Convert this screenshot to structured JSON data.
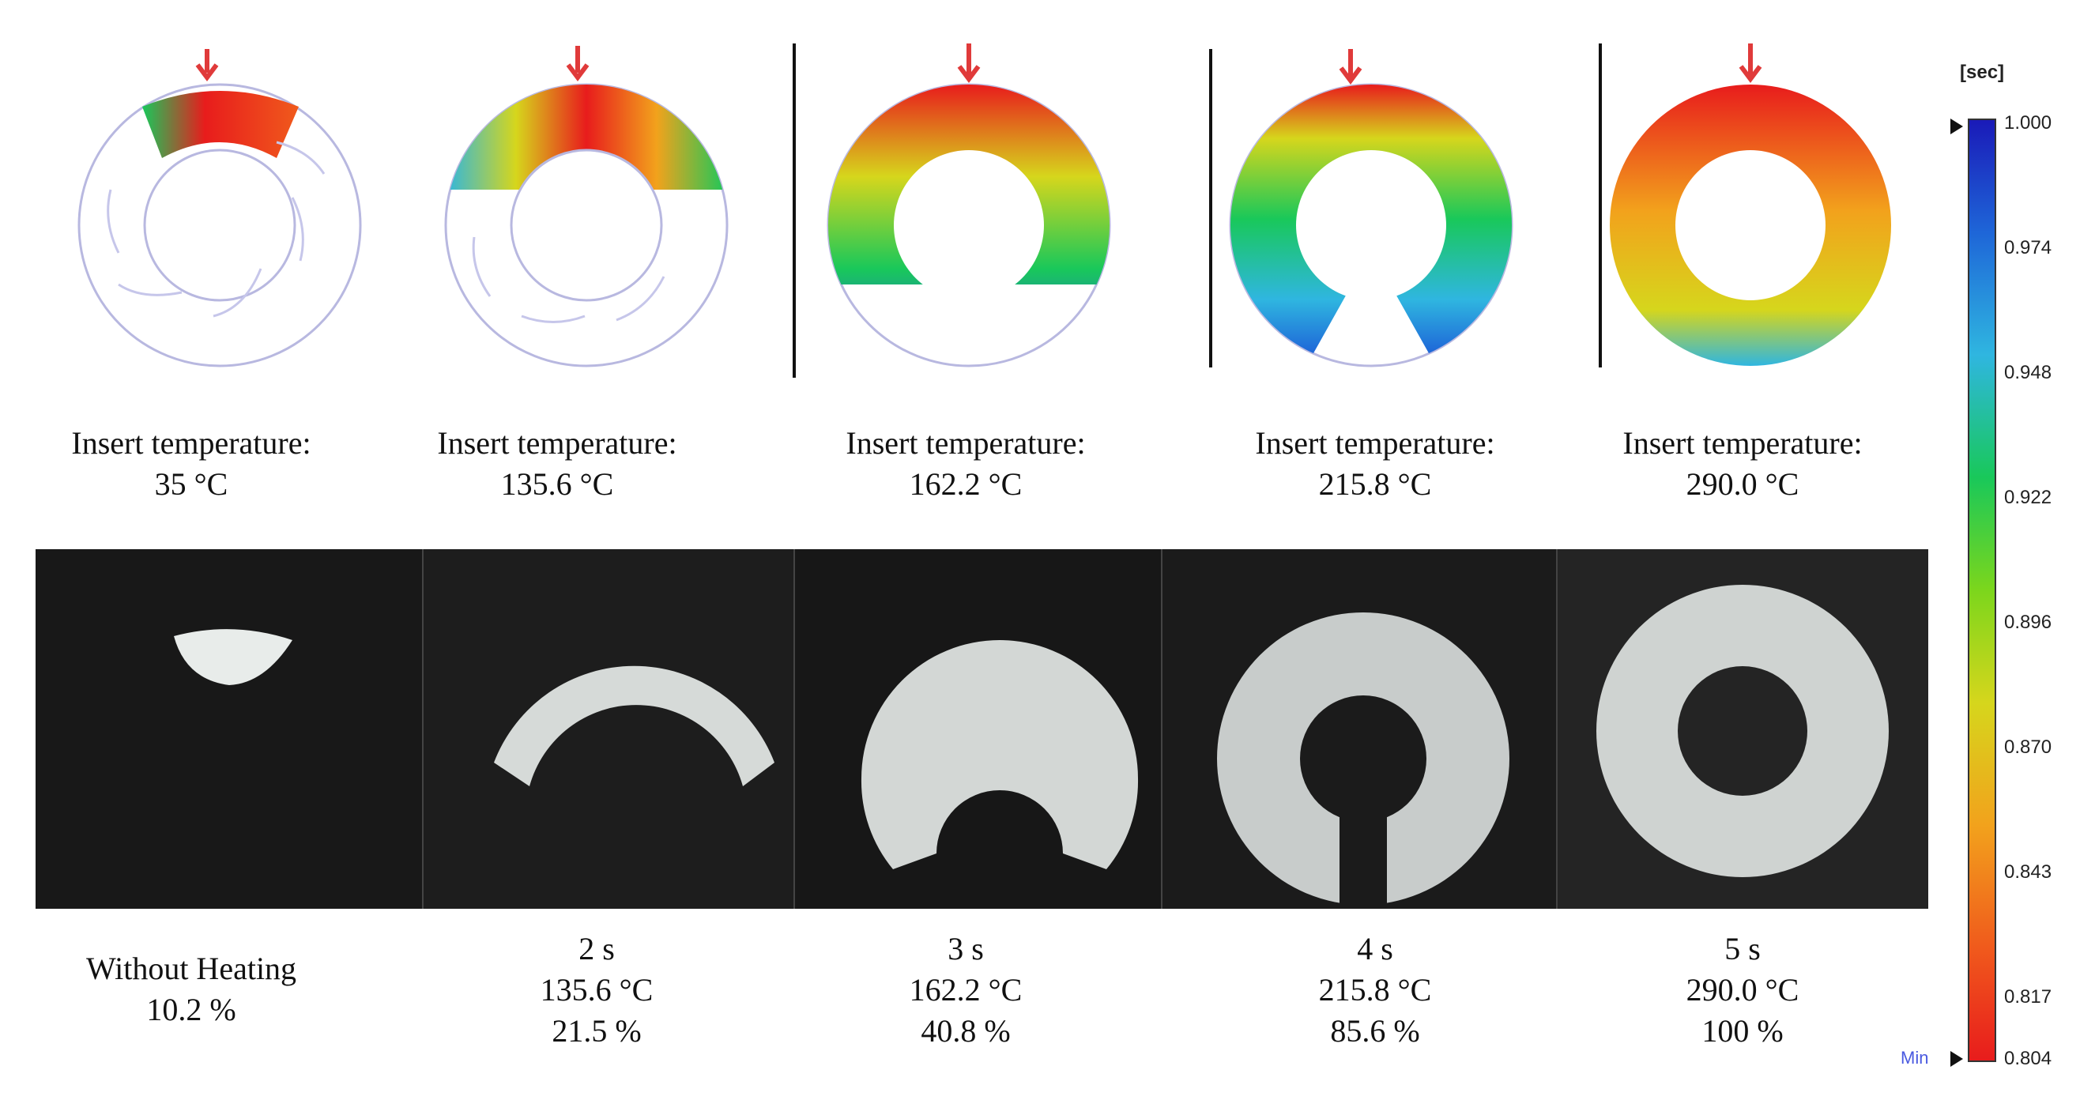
{
  "simulations": [
    {
      "caption_line1": "Insert temperature:",
      "caption_line2": "35 °C"
    },
    {
      "caption_line1": "Insert temperature:",
      "caption_line2": "135.6 °C"
    },
    {
      "caption_line1": "Insert temperature:",
      "caption_line2": "162.2 °C"
    },
    {
      "caption_line1": "Insert temperature:",
      "caption_line2": "215.8 °C"
    },
    {
      "caption_line1": "Insert temperature:",
      "caption_line2": "290.0 °C"
    }
  ],
  "samples": [
    {
      "line1": "Without Heating",
      "line2": "10.2 %",
      "line3": "",
      "fill_fraction": 0.102
    },
    {
      "line1": "2 s",
      "line2": "135.6 °C",
      "line3": "21.5 %",
      "fill_fraction": 0.215
    },
    {
      "line1": "3 s",
      "line2": "162.2 °C",
      "line3": "40.8 %",
      "fill_fraction": 0.408
    },
    {
      "line1": "4 s",
      "line2": "215.8 °C",
      "line3": "85.6 %",
      "fill_fraction": 0.856
    },
    {
      "line1": "5 s",
      "line2": "290.0 °C",
      "line3": "100 %",
      "fill_fraction": 1.0
    }
  ],
  "colorbar": {
    "unit": "[sec]",
    "ticks": [
      "1.000",
      "0.974",
      "0.948",
      "0.922",
      "0.896",
      "0.870",
      "0.843",
      "0.817",
      "0.804"
    ],
    "min_label": "Min",
    "colors": [
      "#1a1ab8",
      "#1e66d8",
      "#2fb6e0",
      "#19c85a",
      "#7cd61c",
      "#d6d61c",
      "#f2a21c",
      "#f05a1c",
      "#e81c1c"
    ]
  }
}
